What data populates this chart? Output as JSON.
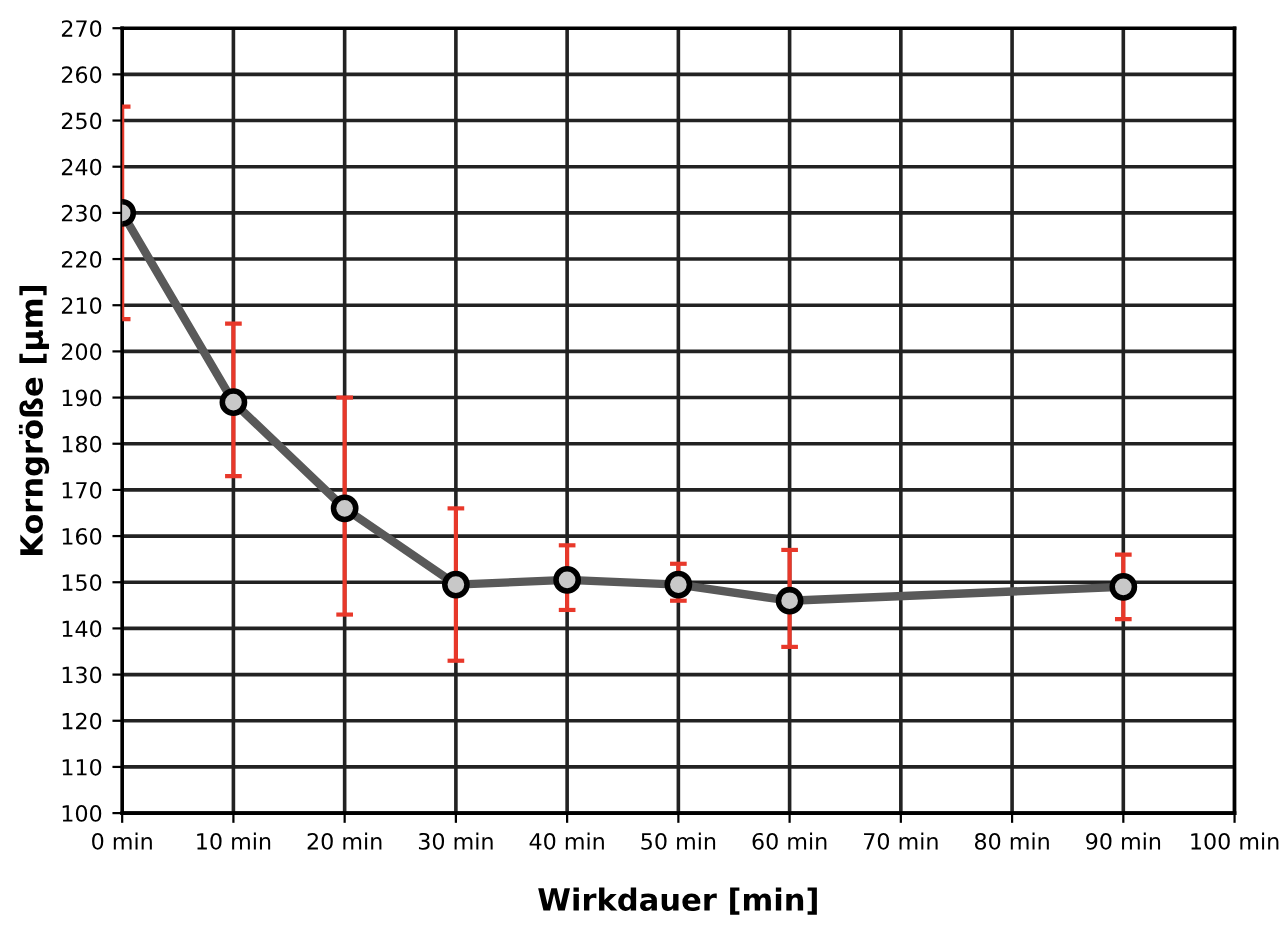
{
  "chart_data": {
    "type": "line",
    "xlabel": "Wirkdauer [min]",
    "ylabel": "Korngröße [µm]",
    "x": [
      0,
      10,
      20,
      30,
      40,
      50,
      60,
      90
    ],
    "series": [
      {
        "color": "#595959",
        "values": [
          230,
          189,
          166,
          149.5,
          150.5,
          149.5,
          146,
          149
        ],
        "errors": [
          [
            207,
            253
          ],
          [
            173,
            206
          ],
          [
            143,
            190
          ],
          [
            133,
            166
          ],
          [
            144,
            158
          ],
          [
            146,
            154
          ],
          [
            136,
            157
          ],
          [
            142,
            156
          ]
        ]
      }
    ],
    "xlim": [
      0,
      100
    ],
    "xticks": [
      {
        "value": 0,
        "label": "0 min"
      },
      {
        "value": 10,
        "label": "10 min"
      },
      {
        "value": 20,
        "label": "20 min"
      },
      {
        "value": 30,
        "label": "30 min"
      },
      {
        "value": 40,
        "label": "40 min"
      },
      {
        "value": 50,
        "label": "50 min"
      },
      {
        "value": 60,
        "label": "60 min"
      },
      {
        "value": 70,
        "label": "70 min"
      },
      {
        "value": 80,
        "label": "80 min"
      },
      {
        "value": 90,
        "label": "90 min"
      },
      {
        "value": 100,
        "label": "100 min"
      }
    ],
    "ylim": [
      100,
      270
    ],
    "yticks": [
      100,
      110,
      120,
      130,
      140,
      150,
      160,
      170,
      180,
      190,
      200,
      210,
      220,
      230,
      240,
      250,
      260,
      270
    ],
    "grid": true,
    "marker": "circle",
    "line_style": "solid"
  }
}
